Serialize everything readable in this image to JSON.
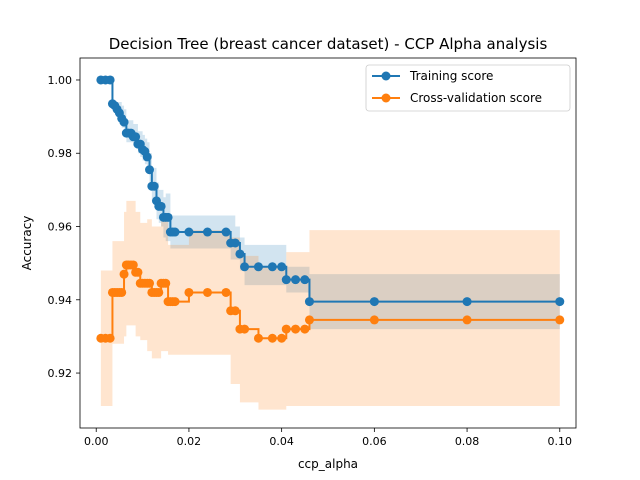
{
  "chart_data": {
    "type": "line",
    "title": "Decision Tree (breast cancer dataset) - CCP Alpha analysis",
    "xlabel": "ccp_alpha",
    "ylabel": "Accuracy",
    "xlim": [
      -0.0035,
      0.1035
    ],
    "ylim": [
      0.905,
      1.006
    ],
    "x_ticks": [
      0.0,
      0.02,
      0.04,
      0.06,
      0.08,
      0.1
    ],
    "x_tick_labels": [
      "0.00",
      "0.02",
      "0.04",
      "0.06",
      "0.08",
      "0.10"
    ],
    "y_ticks": [
      0.92,
      0.94,
      0.96,
      0.98,
      1.0
    ],
    "y_tick_labels": [
      "0.92",
      "0.94",
      "0.96",
      "0.98",
      "1.00"
    ],
    "grid": false,
    "legend_position": "top-right",
    "series": [
      {
        "name": "Training score",
        "color": "#1f77b4",
        "x": [
          0.001,
          0.002,
          0.003,
          0.0035,
          0.004,
          0.0045,
          0.005,
          0.0055,
          0.006,
          0.0065,
          0.007,
          0.0075,
          0.008,
          0.0085,
          0.009,
          0.0095,
          0.01,
          0.0105,
          0.011,
          0.0115,
          0.012,
          0.0125,
          0.013,
          0.0135,
          0.014,
          0.0145,
          0.015,
          0.0155,
          0.016,
          0.0165,
          0.017,
          0.02,
          0.024,
          0.028,
          0.029,
          0.03,
          0.031,
          0.032,
          0.035,
          0.038,
          0.04,
          0.041,
          0.043,
          0.045,
          0.046,
          0.06,
          0.08,
          0.1
        ],
        "y": [
          1.0,
          1.0,
          1.0,
          0.9935,
          0.993,
          0.992,
          0.991,
          0.9895,
          0.9885,
          0.9855,
          0.9855,
          0.9855,
          0.9845,
          0.9845,
          0.9825,
          0.9825,
          0.981,
          0.9805,
          0.979,
          0.9755,
          0.971,
          0.971,
          0.967,
          0.9655,
          0.9655,
          0.9625,
          0.9625,
          0.9625,
          0.9585,
          0.9585,
          0.9585,
          0.9585,
          0.9585,
          0.9585,
          0.9555,
          0.9555,
          0.9525,
          0.949,
          0.949,
          0.949,
          0.949,
          0.9455,
          0.9455,
          0.9455,
          0.9395,
          0.9395,
          0.9395,
          0.9395
        ],
        "band_lower": [
          1.0,
          1.0,
          1.0,
          0.9935,
          0.992,
          0.99,
          0.988,
          0.987,
          0.986,
          0.983,
          0.983,
          0.983,
          0.982,
          0.982,
          0.98,
          0.979,
          0.978,
          0.977,
          0.975,
          0.971,
          0.967,
          0.966,
          0.962,
          0.961,
          0.96,
          0.957,
          0.956,
          0.956,
          0.954,
          0.954,
          0.954,
          0.954,
          0.954,
          0.954,
          0.951,
          0.951,
          0.948,
          0.944,
          0.944,
          0.944,
          0.944,
          0.942,
          0.942,
          0.942,
          0.932,
          0.932,
          0.932,
          0.932
        ],
        "band_upper": [
          1.0,
          1.0,
          1.0,
          0.9935,
          0.994,
          0.994,
          0.994,
          0.993,
          0.992,
          0.989,
          0.989,
          0.989,
          0.988,
          0.988,
          0.986,
          0.986,
          0.985,
          0.984,
          0.983,
          0.98,
          0.975,
          0.976,
          0.972,
          0.97,
          0.97,
          0.968,
          0.969,
          0.969,
          0.963,
          0.963,
          0.963,
          0.963,
          0.963,
          0.963,
          0.963,
          0.96,
          0.957,
          0.955,
          0.955,
          0.955,
          0.955,
          0.949,
          0.949,
          0.949,
          0.947,
          0.947,
          0.947,
          0.947
        ]
      },
      {
        "name": "Cross-validation score",
        "color": "#ff7f0e",
        "x": [
          0.001,
          0.002,
          0.003,
          0.0035,
          0.004,
          0.0045,
          0.005,
          0.0055,
          0.006,
          0.0065,
          0.007,
          0.0075,
          0.008,
          0.0085,
          0.009,
          0.0095,
          0.01,
          0.0105,
          0.011,
          0.0115,
          0.012,
          0.0125,
          0.013,
          0.0135,
          0.014,
          0.0145,
          0.015,
          0.0155,
          0.016,
          0.0165,
          0.017,
          0.02,
          0.024,
          0.028,
          0.029,
          0.03,
          0.031,
          0.032,
          0.035,
          0.038,
          0.04,
          0.041,
          0.043,
          0.045,
          0.046,
          0.06,
          0.08,
          0.1
        ],
        "y": [
          0.9295,
          0.9295,
          0.9295,
          0.942,
          0.942,
          0.942,
          0.942,
          0.942,
          0.947,
          0.9495,
          0.9495,
          0.9495,
          0.9495,
          0.9475,
          0.9475,
          0.9445,
          0.9445,
          0.9445,
          0.9445,
          0.9445,
          0.942,
          0.942,
          0.942,
          0.942,
          0.9445,
          0.9445,
          0.9445,
          0.9395,
          0.9395,
          0.9395,
          0.9395,
          0.942,
          0.942,
          0.942,
          0.937,
          0.937,
          0.932,
          0.932,
          0.9295,
          0.9295,
          0.9295,
          0.932,
          0.932,
          0.932,
          0.9345,
          0.9345,
          0.9345,
          0.9345
        ],
        "band_lower": [
          0.911,
          0.911,
          0.911,
          0.928,
          0.928,
          0.928,
          0.928,
          0.928,
          0.93,
          0.933,
          0.933,
          0.933,
          0.933,
          0.93,
          0.93,
          0.929,
          0.929,
          0.929,
          0.926,
          0.926,
          0.924,
          0.924,
          0.924,
          0.924,
          0.926,
          0.926,
          0.926,
          0.925,
          0.925,
          0.925,
          0.925,
          0.925,
          0.925,
          0.925,
          0.917,
          0.917,
          0.912,
          0.912,
          0.91,
          0.91,
          0.91,
          0.911,
          0.911,
          0.911,
          0.911,
          0.911,
          0.911,
          0.911
        ],
        "band_upper": [
          0.948,
          0.948,
          0.948,
          0.956,
          0.956,
          0.956,
          0.956,
          0.956,
          0.964,
          0.967,
          0.967,
          0.967,
          0.967,
          0.964,
          0.964,
          0.961,
          0.961,
          0.961,
          0.962,
          0.962,
          0.96,
          0.96,
          0.96,
          0.96,
          0.962,
          0.962,
          0.962,
          0.955,
          0.955,
          0.955,
          0.955,
          0.959,
          0.959,
          0.959,
          0.957,
          0.957,
          0.952,
          0.952,
          0.949,
          0.949,
          0.949,
          0.953,
          0.953,
          0.953,
          0.959,
          0.959,
          0.959,
          0.959
        ]
      }
    ]
  }
}
